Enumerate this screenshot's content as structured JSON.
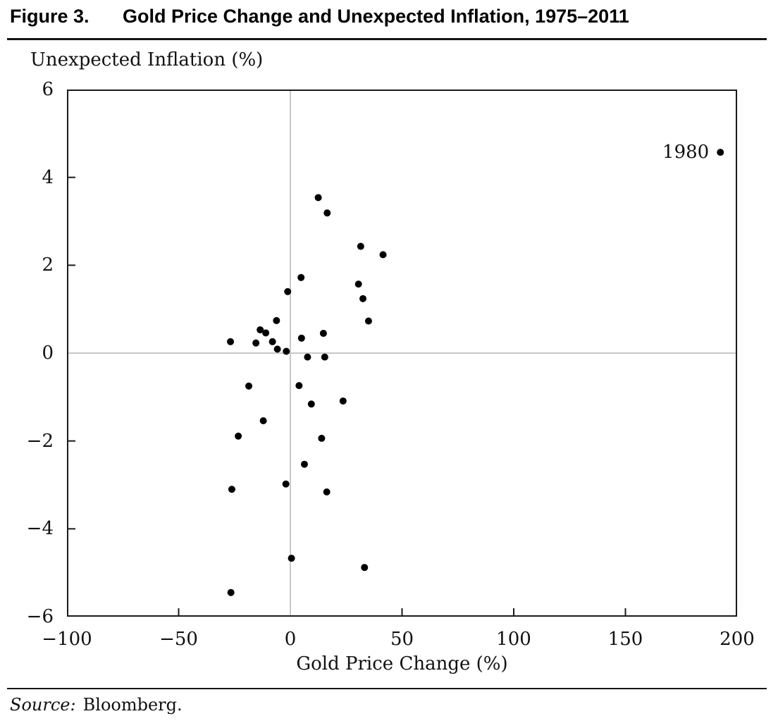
{
  "figure": {
    "label": "Figure 3.",
    "title": "Gold Price Change and Unexpected Inflation, 1975–2011"
  },
  "chart_data": {
    "type": "scatter",
    "title": "Gold Price Change and Unexpected Inflation, 1975–2011",
    "xlabel": "Gold Price Change (%)",
    "ylabel": "Unexpected Inflation (%)",
    "xlim": [
      -100,
      200
    ],
    "ylim": [
      -6,
      6
    ],
    "xticks": [
      -100,
      -50,
      0,
      50,
      100,
      150,
      200
    ],
    "yticks": [
      6,
      4,
      2,
      0,
      -2,
      -4,
      -6
    ],
    "grid": "zero-lines-only",
    "gridline_color": "#c8c8c8",
    "axis_color": "#1a1a1a",
    "marker_color": "#000000",
    "marker_radius": 5,
    "legend": "none",
    "points": [
      [
        192.5,
        4.57
      ],
      [
        12.5,
        3.54
      ],
      [
        16.5,
        3.19
      ],
      [
        31.5,
        2.43
      ],
      [
        41.5,
        2.24
      ],
      [
        4.8,
        1.72
      ],
      [
        30.5,
        1.57
      ],
      [
        -1.2,
        1.4
      ],
      [
        32.5,
        1.24
      ],
      [
        -6.2,
        0.74
      ],
      [
        35.0,
        0.73
      ],
      [
        -13.5,
        0.53
      ],
      [
        -11.0,
        0.46
      ],
      [
        -26.8,
        0.26
      ],
      [
        -15.4,
        0.23
      ],
      [
        -8.0,
        0.26
      ],
      [
        -5.8,
        0.09
      ],
      [
        -1.8,
        0.04
      ],
      [
        5.0,
        0.34
      ],
      [
        14.8,
        0.45
      ],
      [
        7.7,
        -0.09
      ],
      [
        15.4,
        -0.09
      ],
      [
        -18.6,
        -0.75
      ],
      [
        3.9,
        -0.74
      ],
      [
        9.4,
        -1.16
      ],
      [
        23.6,
        -1.09
      ],
      [
        -12.1,
        -1.54
      ],
      [
        -23.3,
        -1.89
      ],
      [
        14.0,
        -1.94
      ],
      [
        6.3,
        -2.53
      ],
      [
        -2.0,
        -2.98
      ],
      [
        -26.2,
        -3.1
      ],
      [
        16.3,
        -3.16
      ],
      [
        0.5,
        -4.67
      ],
      [
        33.2,
        -4.88
      ],
      [
        -26.6,
        -5.45
      ]
    ],
    "annotations": [
      {
        "text": "1980",
        "x": 192.5,
        "y": 4.57
      }
    ]
  },
  "source": {
    "prefix": "Source:",
    "text": "Bloomberg."
  }
}
